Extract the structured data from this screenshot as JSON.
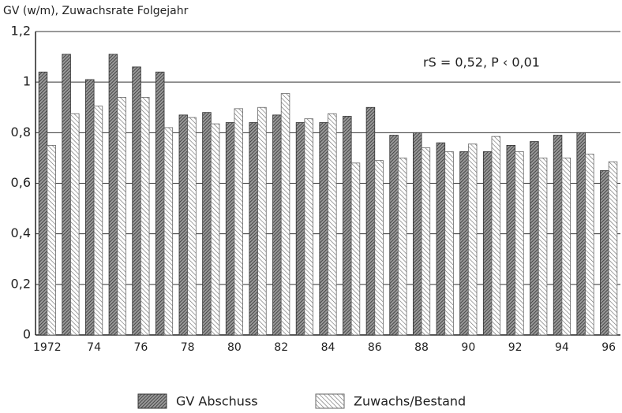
{
  "chart_data": {
    "type": "bar",
    "title": "GV (w/m), Zuwachsrate Folgejahr",
    "annotation": "rS = 0,52, P ‹ 0,01",
    "categories": [
      "1972",
      null,
      "74",
      null,
      "76",
      null,
      "78",
      null,
      "80",
      null,
      "82",
      null,
      "84",
      null,
      "86",
      null,
      "88",
      null,
      "90",
      null,
      "92",
      null,
      "94",
      null,
      "96"
    ],
    "series": [
      {
        "name": "GV Abschuss",
        "color": "#333333",
        "values": [
          1.04,
          1.11,
          1.01,
          1.11,
          1.06,
          1.04,
          0.87,
          0.88,
          0.84,
          0.84,
          0.87,
          0.84,
          0.84,
          0.865,
          0.9,
          0.79,
          0.8,
          0.76,
          0.725,
          0.725,
          0.75,
          0.765,
          0.79,
          0.8,
          0.65
        ]
      },
      {
        "name": "Zuwachs/Bestand",
        "color": "#666666",
        "values": [
          0.75,
          0.875,
          0.905,
          0.94,
          0.94,
          0.82,
          0.86,
          0.835,
          0.895,
          0.9,
          0.955,
          0.855,
          0.875,
          0.68,
          0.69,
          0.7,
          0.74,
          0.725,
          0.755,
          0.785,
          0.725,
          0.7,
          0.7,
          0.715,
          0.685
        ]
      }
    ],
    "ylim": [
      0,
      1.2
    ],
    "yticks": [
      0,
      {
        "value": 0.2,
        "label": "0,2"
      },
      {
        "value": 0.4,
        "label": "0,4"
      },
      {
        "value": 0.6,
        "label": "0,6"
      },
      {
        "value": 0.8,
        "label": "0,8"
      },
      1,
      {
        "value": 1.2,
        "label": "1,2"
      }
    ],
    "grid": true,
    "legend": "bottom"
  }
}
